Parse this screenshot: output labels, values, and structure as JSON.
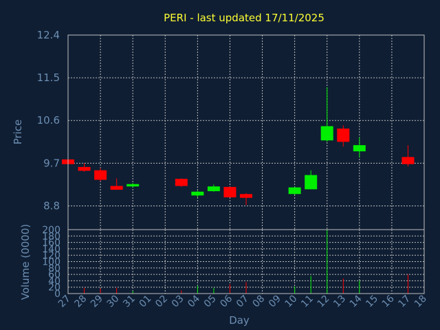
{
  "chart_data": {
    "type": "candlestick",
    "title": "PERI - last updated 17/11/2025",
    "price_axis": {
      "label": "Price",
      "ylim": [
        8.3,
        12.4
      ],
      "ticks": [
        "12.4",
        "11.5",
        "10.6",
        "9.7",
        "8.8"
      ]
    },
    "volume_axis": {
      "label": "Volume (0000)",
      "ylim": [
        0,
        200
      ],
      "ticks": [
        "200",
        "180",
        "160",
        "140",
        "120",
        "100",
        "80",
        "60",
        "40",
        "20",
        "0"
      ]
    },
    "x_axis": {
      "label": "Day",
      "categories": [
        "27",
        "28",
        "29",
        "30",
        "31",
        "01",
        "02",
        "03",
        "04",
        "05",
        "06",
        "07",
        "08",
        "09",
        "10",
        "11",
        "12",
        "13",
        "14",
        "15",
        "16",
        "17",
        "18"
      ]
    },
    "grid": true,
    "colors": {
      "up": "#00ee00",
      "down": "#ff0000",
      "grid": "#c0c0c0",
      "frame": "#c0c0c0",
      "title": "#ffff33",
      "text": "#6d8fb3"
    },
    "candles": [
      {
        "day": "27",
        "open": 9.78,
        "high": 9.8,
        "low": 9.66,
        "close": 9.68,
        "volume": 12
      },
      {
        "day": "28",
        "open": 9.62,
        "high": 9.7,
        "low": 9.52,
        "close": 9.54,
        "volume": 18
      },
      {
        "day": "29",
        "open": 9.55,
        "high": 9.6,
        "low": 9.32,
        "close": 9.35,
        "volume": 16
      },
      {
        "day": "30",
        "open": 9.22,
        "high": 9.38,
        "low": 9.14,
        "close": 9.14,
        "volume": 18
      },
      {
        "day": "31",
        "open": 9.21,
        "high": 9.28,
        "low": 9.19,
        "close": 9.26,
        "volume": 8
      },
      {
        "day": "03",
        "open": 9.37,
        "high": 9.38,
        "low": 9.2,
        "close": 9.22,
        "volume": 10
      },
      {
        "day": "04",
        "open": 9.02,
        "high": 9.12,
        "low": 8.98,
        "close": 9.1,
        "volume": 25
      },
      {
        "day": "05",
        "open": 9.11,
        "high": 9.25,
        "low": 9.1,
        "close": 9.21,
        "volume": 18
      },
      {
        "day": "06",
        "open": 9.2,
        "high": 9.2,
        "low": 8.98,
        "close": 8.98,
        "volume": 30
      },
      {
        "day": "07",
        "open": 9.05,
        "high": 9.07,
        "low": 8.82,
        "close": 8.97,
        "volume": 36
      },
      {
        "day": "10",
        "open": 9.05,
        "high": 9.2,
        "low": 9.04,
        "close": 9.19,
        "volume": 22
      },
      {
        "day": "11",
        "open": 9.15,
        "high": 9.55,
        "low": 9.15,
        "close": 9.45,
        "volume": 55
      },
      {
        "day": "12",
        "open": 10.18,
        "high": 11.3,
        "low": 10.15,
        "close": 10.48,
        "volume": 200
      },
      {
        "day": "13",
        "open": 10.43,
        "high": 10.5,
        "low": 10.05,
        "close": 10.15,
        "volume": 47
      },
      {
        "day": "14",
        "open": 9.95,
        "high": 10.25,
        "low": 9.82,
        "close": 10.08,
        "volume": 40
      },
      {
        "day": "17",
        "open": 9.83,
        "high": 10.08,
        "low": 9.63,
        "close": 9.68,
        "volume": 60
      }
    ]
  }
}
